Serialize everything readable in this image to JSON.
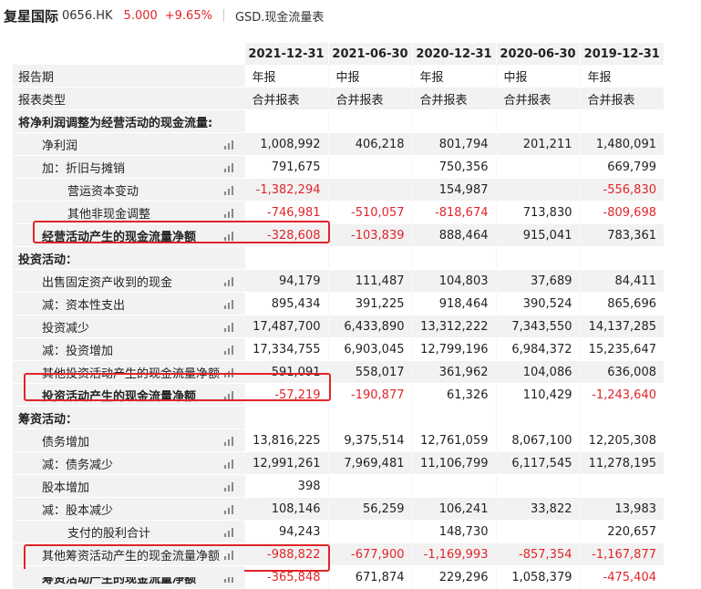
{
  "header": {
    "company": "复星国际",
    "code": "0656.HK",
    "price": "5.000",
    "change": "+9.65%",
    "report_name": "GSD.现金流量表"
  },
  "table": {
    "dates": [
      "2021-12-31",
      "2021-06-30",
      "2020-12-31",
      "2020-06-30",
      "2019-12-31"
    ],
    "rows": [
      {
        "label": "报告期",
        "values": [
          "年报",
          "中报",
          "年报",
          "中报",
          "年报"
        ],
        "indent": 0,
        "icon": false,
        "bold": false,
        "text": true
      },
      {
        "label": "报表类型",
        "values": [
          "合并报表",
          "合并报表",
          "合并报表",
          "合并报表",
          "合并报表"
        ],
        "indent": 0,
        "icon": false,
        "bold": false,
        "text": true
      },
      {
        "label": "将净利润调整为经营活动的现金流量:",
        "values": [
          "",
          "",
          "",
          "",
          ""
        ],
        "indent": 0,
        "icon": false,
        "bold": true,
        "section": true
      },
      {
        "label": "净利润",
        "values": [
          "1,008,992",
          "406,218",
          "801,794",
          "201,211",
          "1,480,091"
        ],
        "indent": 1,
        "icon": true
      },
      {
        "label": "加：折旧与摊销",
        "values": [
          "791,675",
          "",
          "750,356",
          "",
          "669,799"
        ],
        "indent": 1,
        "icon": true
      },
      {
        "label": "营运资本变动",
        "values": [
          "-1,382,294",
          "",
          "154,987",
          "",
          "-556,830"
        ],
        "indent": 2,
        "icon": true
      },
      {
        "label": "其他非现金调整",
        "values": [
          "-746,981",
          "-510,057",
          "-818,674",
          "713,830",
          "-809,698"
        ],
        "indent": 2,
        "icon": true
      },
      {
        "label": "经营活动产生的现金流量净额",
        "values": [
          "-328,608",
          "-103,839",
          "888,464",
          "915,041",
          "783,361"
        ],
        "indent": 1,
        "icon": true,
        "bold": true
      },
      {
        "label": "投资活动：",
        "values": [
          "",
          "",
          "",
          "",
          ""
        ],
        "indent": 0,
        "icon": false,
        "bold": true,
        "section": true
      },
      {
        "label": "出售固定资产收到的现金",
        "values": [
          "94,179",
          "111,487",
          "104,803",
          "37,689",
          "84,411"
        ],
        "indent": 1,
        "icon": true
      },
      {
        "label": "减：资本性支出",
        "values": [
          "895,434",
          "391,225",
          "918,464",
          "390,524",
          "865,696"
        ],
        "indent": 1,
        "icon": true
      },
      {
        "label": "投资减少",
        "values": [
          "17,487,700",
          "6,433,890",
          "13,312,222",
          "7,343,550",
          "14,137,285"
        ],
        "indent": 1,
        "icon": true
      },
      {
        "label": "减：投资增加",
        "values": [
          "17,334,755",
          "6,903,045",
          "12,799,196",
          "6,984,372",
          "15,235,647"
        ],
        "indent": 1,
        "icon": true
      },
      {
        "label": "其他投资活动产生的现金流量净额",
        "values": [
          "591,091",
          "558,017",
          "361,962",
          "104,086",
          "636,008"
        ],
        "indent": 1,
        "icon": true
      },
      {
        "label": "投资活动产生的现金流量净额",
        "values": [
          "-57,219",
          "-190,877",
          "61,326",
          "110,429",
          "-1,243,640"
        ],
        "indent": 1,
        "icon": true,
        "bold": true
      },
      {
        "label": "筹资活动：",
        "values": [
          "",
          "",
          "",
          "",
          ""
        ],
        "indent": 0,
        "icon": false,
        "bold": true,
        "section": true
      },
      {
        "label": "债务增加",
        "values": [
          "13,816,225",
          "9,375,514",
          "12,761,059",
          "8,067,100",
          "12,205,308"
        ],
        "indent": 1,
        "icon": true
      },
      {
        "label": "减：债务减少",
        "values": [
          "12,991,261",
          "7,969,481",
          "11,106,799",
          "6,117,545",
          "11,278,195"
        ],
        "indent": 1,
        "icon": true
      },
      {
        "label": "股本增加",
        "values": [
          "398",
          "",
          "",
          "",
          ""
        ],
        "indent": 1,
        "icon": true
      },
      {
        "label": "减：股本减少",
        "values": [
          "108,146",
          "56,259",
          "106,241",
          "33,822",
          "13,983"
        ],
        "indent": 1,
        "icon": true
      },
      {
        "label": "支付的股利合计",
        "values": [
          "94,243",
          "",
          "148,730",
          "",
          "220,657"
        ],
        "indent": 2,
        "icon": true
      },
      {
        "label": "其他筹资活动产生的现金流量净额",
        "values": [
          "-988,822",
          "-677,900",
          "-1,169,993",
          "-857,354",
          "-1,167,877"
        ],
        "indent": 1,
        "icon": true
      },
      {
        "label": "筹资活动产生的现金流量净额",
        "values": [
          "-365,848",
          "671,874",
          "229,296",
          "1,058,379",
          "-475,404"
        ],
        "indent": 1,
        "icon": true,
        "bold": true
      }
    ]
  },
  "colors": {
    "negative": "#e0252a",
    "positive_change": "#e0252a",
    "highlight_border": "#e0252a",
    "row_shade": "#f2f2f2"
  },
  "icons": {
    "row_chart_icon": "bar-chart-icon"
  }
}
